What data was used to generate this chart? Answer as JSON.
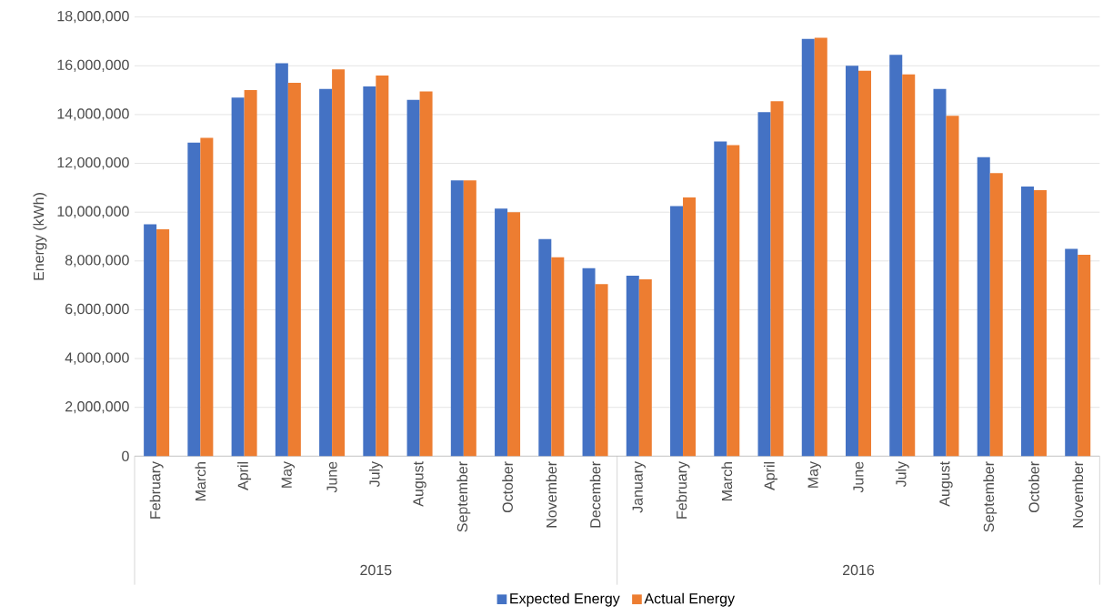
{
  "chart_data": {
    "type": "bar",
    "ylabel": "Energy (kWh)",
    "categories": [
      "February",
      "March",
      "April",
      "May",
      "June",
      "July",
      "August",
      "September",
      "October",
      "November",
      "December",
      "January",
      "February",
      "March",
      "April",
      "May",
      "June",
      "July",
      "August",
      "September",
      "October",
      "November"
    ],
    "annotations": [
      "2015",
      "2016"
    ],
    "series": [
      {
        "name": "Expected Energy",
        "color": "#4472c4",
        "values": [
          9500000,
          12850000,
          14700000,
          16100000,
          15050000,
          15150000,
          14600000,
          11300000,
          10150000,
          8900000,
          7700000,
          7400000,
          10250000,
          12900000,
          14100000,
          17100000,
          16000000,
          16450000,
          15050000,
          12250000,
          11050000,
          8500000
        ]
      },
      {
        "name": "Actual Energy",
        "color": "#ed7d31",
        "values": [
          9300000,
          13050000,
          15000000,
          15300000,
          15850000,
          15600000,
          14950000,
          11300000,
          10000000,
          8150000,
          7050000,
          7250000,
          10600000,
          12750000,
          14550000,
          17150000,
          15800000,
          15650000,
          13950000,
          11600000,
          10900000,
          8250000
        ]
      }
    ],
    "ylim": [
      0,
      18000000
    ],
    "yticks": [
      {
        "value": 0,
        "label": "0"
      },
      {
        "value": 2000000,
        "label": "2,000,000"
      },
      {
        "value": 4000000,
        "label": "4,000,000"
      },
      {
        "value": 6000000,
        "label": "6,000,000"
      },
      {
        "value": 8000000,
        "label": "8,000,000"
      },
      {
        "value": 10000000,
        "label": "10,000,000"
      },
      {
        "value": 12000000,
        "label": "12,000,000"
      },
      {
        "value": 14000000,
        "label": "14,000,000"
      },
      {
        "value": 16000000,
        "label": "16,000,000"
      },
      {
        "value": 18000000,
        "label": "18,000,000"
      }
    ],
    "grid": "y",
    "legend": "bottom"
  }
}
